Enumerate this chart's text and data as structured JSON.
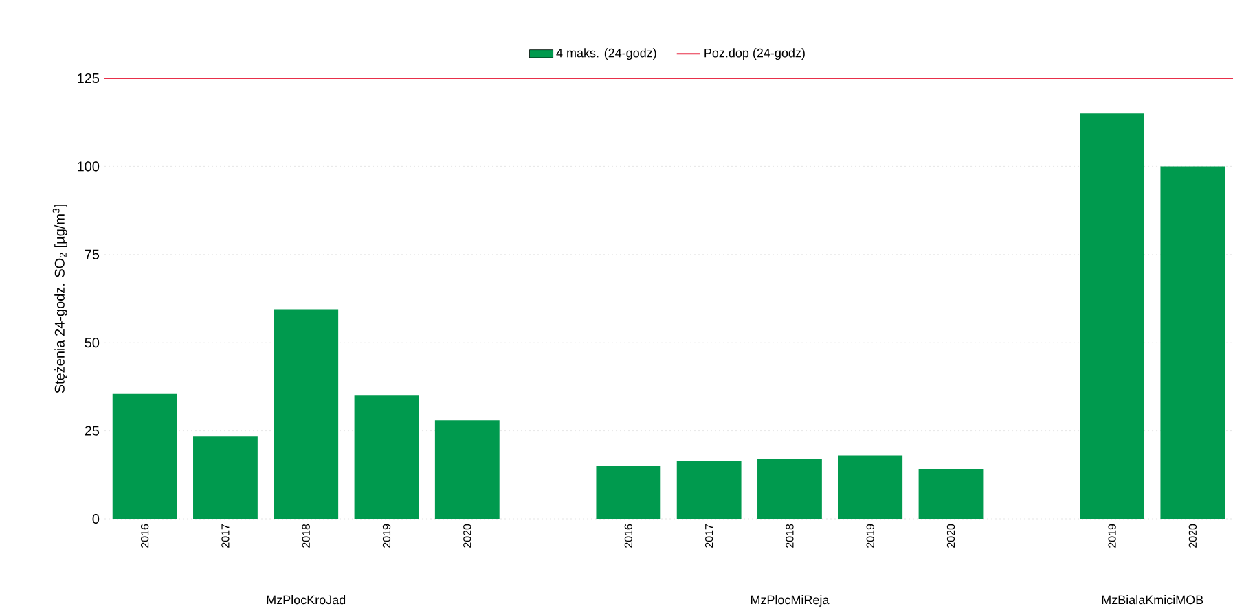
{
  "chart_data": {
    "type": "bar",
    "ylabel": "Stężenia 24-godz. SO$_{2}$ [µg/m$^{3}$]",
    "categories": [
      "2016",
      "2017",
      "2018",
      "2019",
      "2020",
      null,
      "2016",
      "2017",
      "2018",
      "2019",
      "2020",
      null,
      "2019",
      "2020"
    ],
    "series": [
      {
        "name": "4 maks. (24-godz)",
        "color": "#009a4e",
        "values": [
          35.5,
          23.5,
          59.5,
          35,
          28,
          null,
          15,
          16.5,
          17,
          18,
          14,
          null,
          115,
          100
        ]
      }
    ],
    "ref_lines": [
      {
        "axis": "y",
        "value": 125,
        "label": "Poz.dop (24-godz)",
        "color": "#e8304a"
      }
    ],
    "annotations": [
      "MzPlocKroJad",
      "MzPlocMiReja",
      "MzBialaKmiciMOB"
    ],
    "ylim": [
      0,
      125
    ],
    "yticks": [
      0,
      25,
      50,
      75,
      100,
      125
    ],
    "grid": "y",
    "legend": "top"
  }
}
